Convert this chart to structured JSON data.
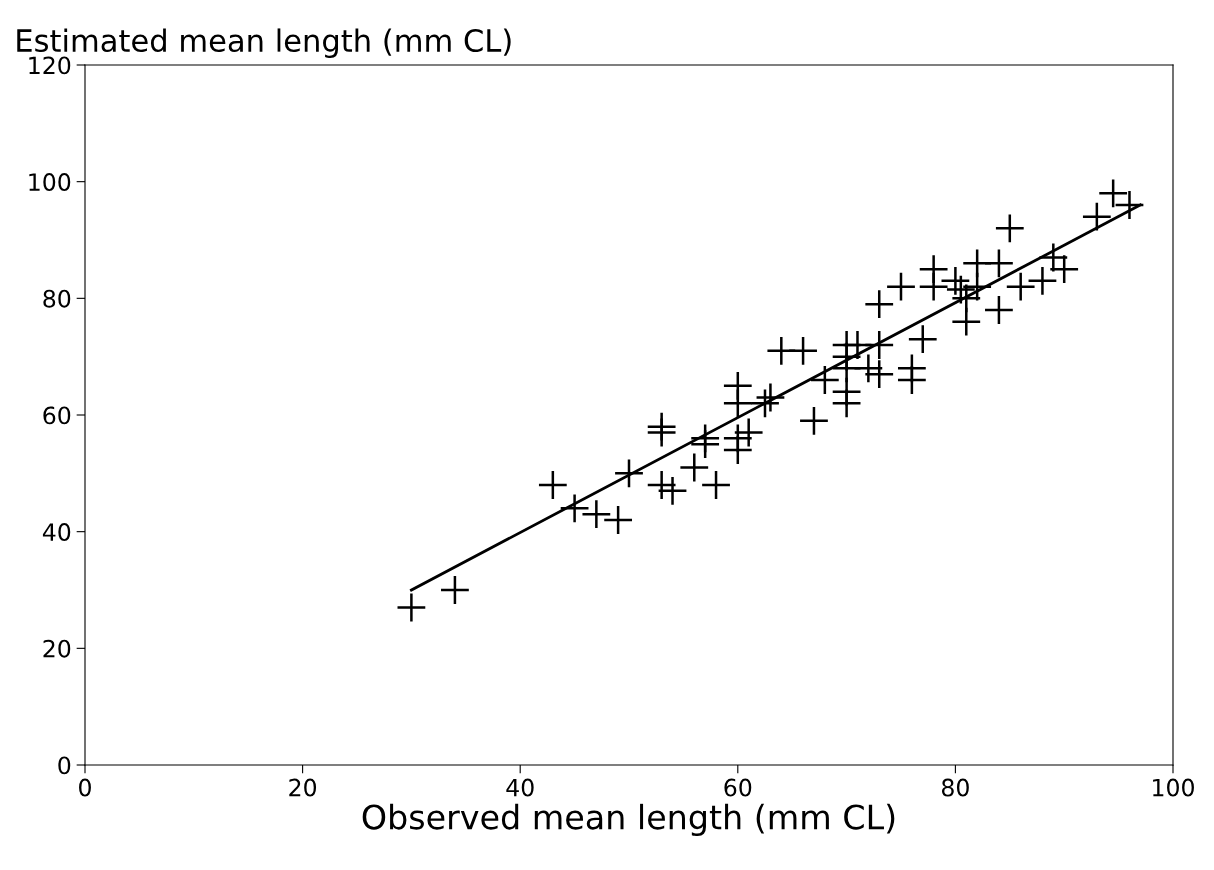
{
  "chart_data": {
    "type": "scatter",
    "xlabel": "Observed mean length (mm CL)",
    "ylabel": "Estimated mean length (mm CL)",
    "marker": "cross",
    "grid": false,
    "legend": false,
    "xlim": [
      0,
      100
    ],
    "ylim": [
      0,
      120
    ],
    "xticks": [
      0,
      20,
      40,
      60,
      80,
      100
    ],
    "yticks": [
      0,
      20,
      40,
      60,
      80,
      100,
      120
    ],
    "series": [
      {
        "color": "#000000",
        "x": [
          30,
          34,
          43,
          45,
          47,
          49,
          50,
          53,
          53,
          53,
          54,
          56,
          57,
          57,
          58,
          60,
          60,
          60,
          60,
          61,
          62.5,
          63,
          64,
          66,
          67,
          68,
          70,
          70,
          70,
          70,
          70,
          71,
          72,
          73,
          73,
          73,
          75,
          76,
          76,
          77,
          78,
          78,
          80,
          80.5,
          81,
          81,
          82,
          82,
          84,
          84,
          85,
          86,
          88,
          89,
          90,
          93,
          94.5,
          96
        ],
        "values": [
          27,
          30,
          48,
          44,
          43,
          42,
          50,
          58,
          57,
          48,
          47,
          51,
          56,
          55,
          48,
          65,
          62,
          56,
          54,
          57,
          62,
          63,
          71,
          71,
          59,
          66,
          70,
          72,
          68,
          64,
          62,
          72,
          68,
          79,
          72,
          67,
          82,
          68,
          66,
          73,
          85,
          82,
          83,
          81.5,
          80,
          76,
          86,
          82,
          86,
          78,
          92,
          82,
          83,
          87,
          85,
          94,
          98,
          96
        ]
      },
      {
        "type": "line",
        "color": "#000000",
        "marker": "none",
        "x": [
          30,
          97
        ],
        "values": [
          30,
          96
        ]
      }
    ]
  }
}
